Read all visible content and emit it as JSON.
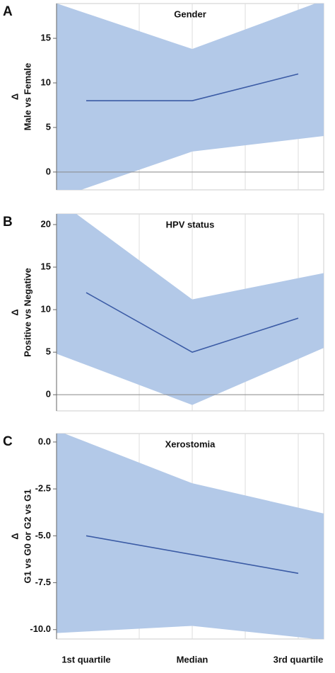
{
  "chart_data": [
    {
      "type": "band-line",
      "panel": "A",
      "title": "Gender",
      "ylabel_symbol": "Δ",
      "ylabel": "Male vs Female",
      "categories": [
        null,
        null,
        null
      ],
      "series": [
        {
          "values": [
            8,
            8,
            11
          ],
          "lower": [
            -1.8,
            2.3,
            3.7
          ],
          "upper": [
            17.8,
            13.8,
            18.2
          ],
          "color": "#3b5ba5",
          "band_color": "#b3c9e8"
        }
      ],
      "ylim": [
        -2,
        18.9
      ],
      "yticks": [
        0,
        5,
        10,
        15
      ],
      "hline": 0
    },
    {
      "type": "band-line",
      "panel": "B",
      "title": "HPV status",
      "ylabel_symbol": "Δ",
      "ylabel": "Positive vs Negative",
      "categories": [
        null,
        null,
        null
      ],
      "series": [
        {
          "values": [
            12,
            5,
            9
          ],
          "lower": [
            3.5,
            -1.2,
            4.2
          ],
          "upper": [
            20.4,
            11.2,
            13.7
          ],
          "color": "#3b5ba5",
          "band_color": "#b3c9e8"
        }
      ],
      "ylim": [
        -1.9,
        21.25
      ],
      "yticks": [
        0,
        5,
        10,
        15,
        20
      ],
      "hline": 0
    },
    {
      "type": "band-line",
      "panel": "C",
      "title": "Xerostomia",
      "ylabel_symbol": "Δ",
      "ylabel": "G1 vs G0 or G2 vs G1",
      "categories": [
        "1st quartile",
        "Median",
        "3rd quartile"
      ],
      "series": [
        {
          "values": [
            -5,
            -6,
            -7
          ],
          "lower": [
            -10.1,
            -9.8,
            -10.4
          ],
          "upper": [
            0,
            -2.2,
            -3.5
          ],
          "color": "#3b5ba5",
          "band_color": "#b3c9e8"
        }
      ],
      "ylim": [
        -10.5,
        0.45
      ],
      "yticks": [
        {
          "value": 0,
          "label": "0.0"
        },
        -2.5,
        {
          "value": -5,
          "label": "-5.0"
        },
        -7.5,
        {
          "value": -10,
          "label": "-10.0"
        }
      ]
    }
  ]
}
